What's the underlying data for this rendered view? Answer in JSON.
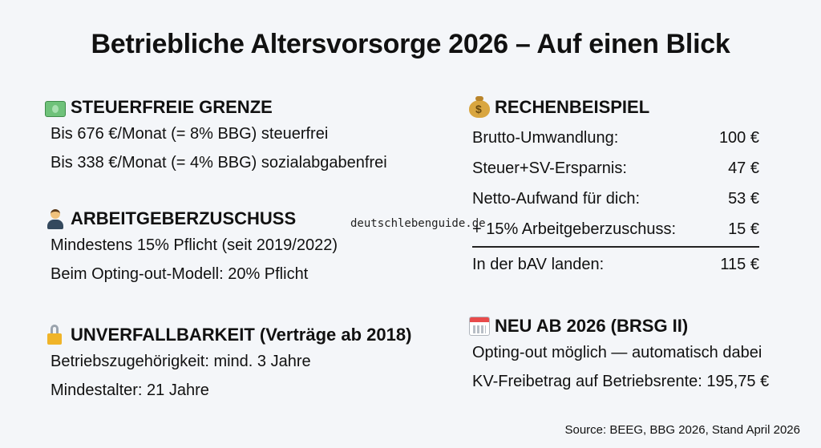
{
  "title": "Betriebliche Altersvorsorge 2026 – Auf einen Blick",
  "watermark": "deutschlebenguide.de",
  "source": "Source: BEEG, BBG 2026, Stand April 2026",
  "sections": {
    "steuerfrei": {
      "icon": "banknote-icon",
      "heading": "STEUERFREIE GRENZE",
      "lines": [
        "Bis 676 €/Monat (= 8% BBG) steuerfrei",
        "Bis 338 €/Monat (= 4% BBG) sozialabgabenfrei"
      ]
    },
    "zuschuss": {
      "icon": "businessman-icon",
      "heading": "ARBEITGEBERZUSCHUSS",
      "lines": [
        "Mindestens 15% Pflicht (seit 2019/2022)",
        "Beim Opting-out-Modell: 20% Pflicht"
      ]
    },
    "unverfall": {
      "icon": "unlocked-lock-icon",
      "heading": "UNVERFALLBARKEIT (Verträge ab 2018)",
      "lines": [
        "Betriebszugehörigkeit: mind. 3 Jahre",
        "Mindestalter: 21 Jahre"
      ]
    },
    "rechen": {
      "icon": "money-bag-icon",
      "heading": "RECHENBEISPIEL",
      "rows": [
        {
          "label": "Brutto-Umwandlung:",
          "value": "100 €"
        },
        {
          "label": "Steuer+SV-Ersparnis:",
          "value": "47 €"
        },
        {
          "label": "Netto-Aufwand für dich:",
          "value": "53 €"
        },
        {
          "label": "+ 15% Arbeitgeberzuschuss:",
          "value": "15 €"
        }
      ],
      "total": {
        "label": "In der bAV landen:",
        "value": "115 €"
      }
    },
    "neu": {
      "icon": "calendar-icon",
      "heading": "NEU AB 2026 (BRSG II)",
      "lines": [
        "Opting-out möglich — automatisch dabei",
        "KV-Freibetrag auf Betriebsrente: 195,75 €"
      ]
    }
  }
}
